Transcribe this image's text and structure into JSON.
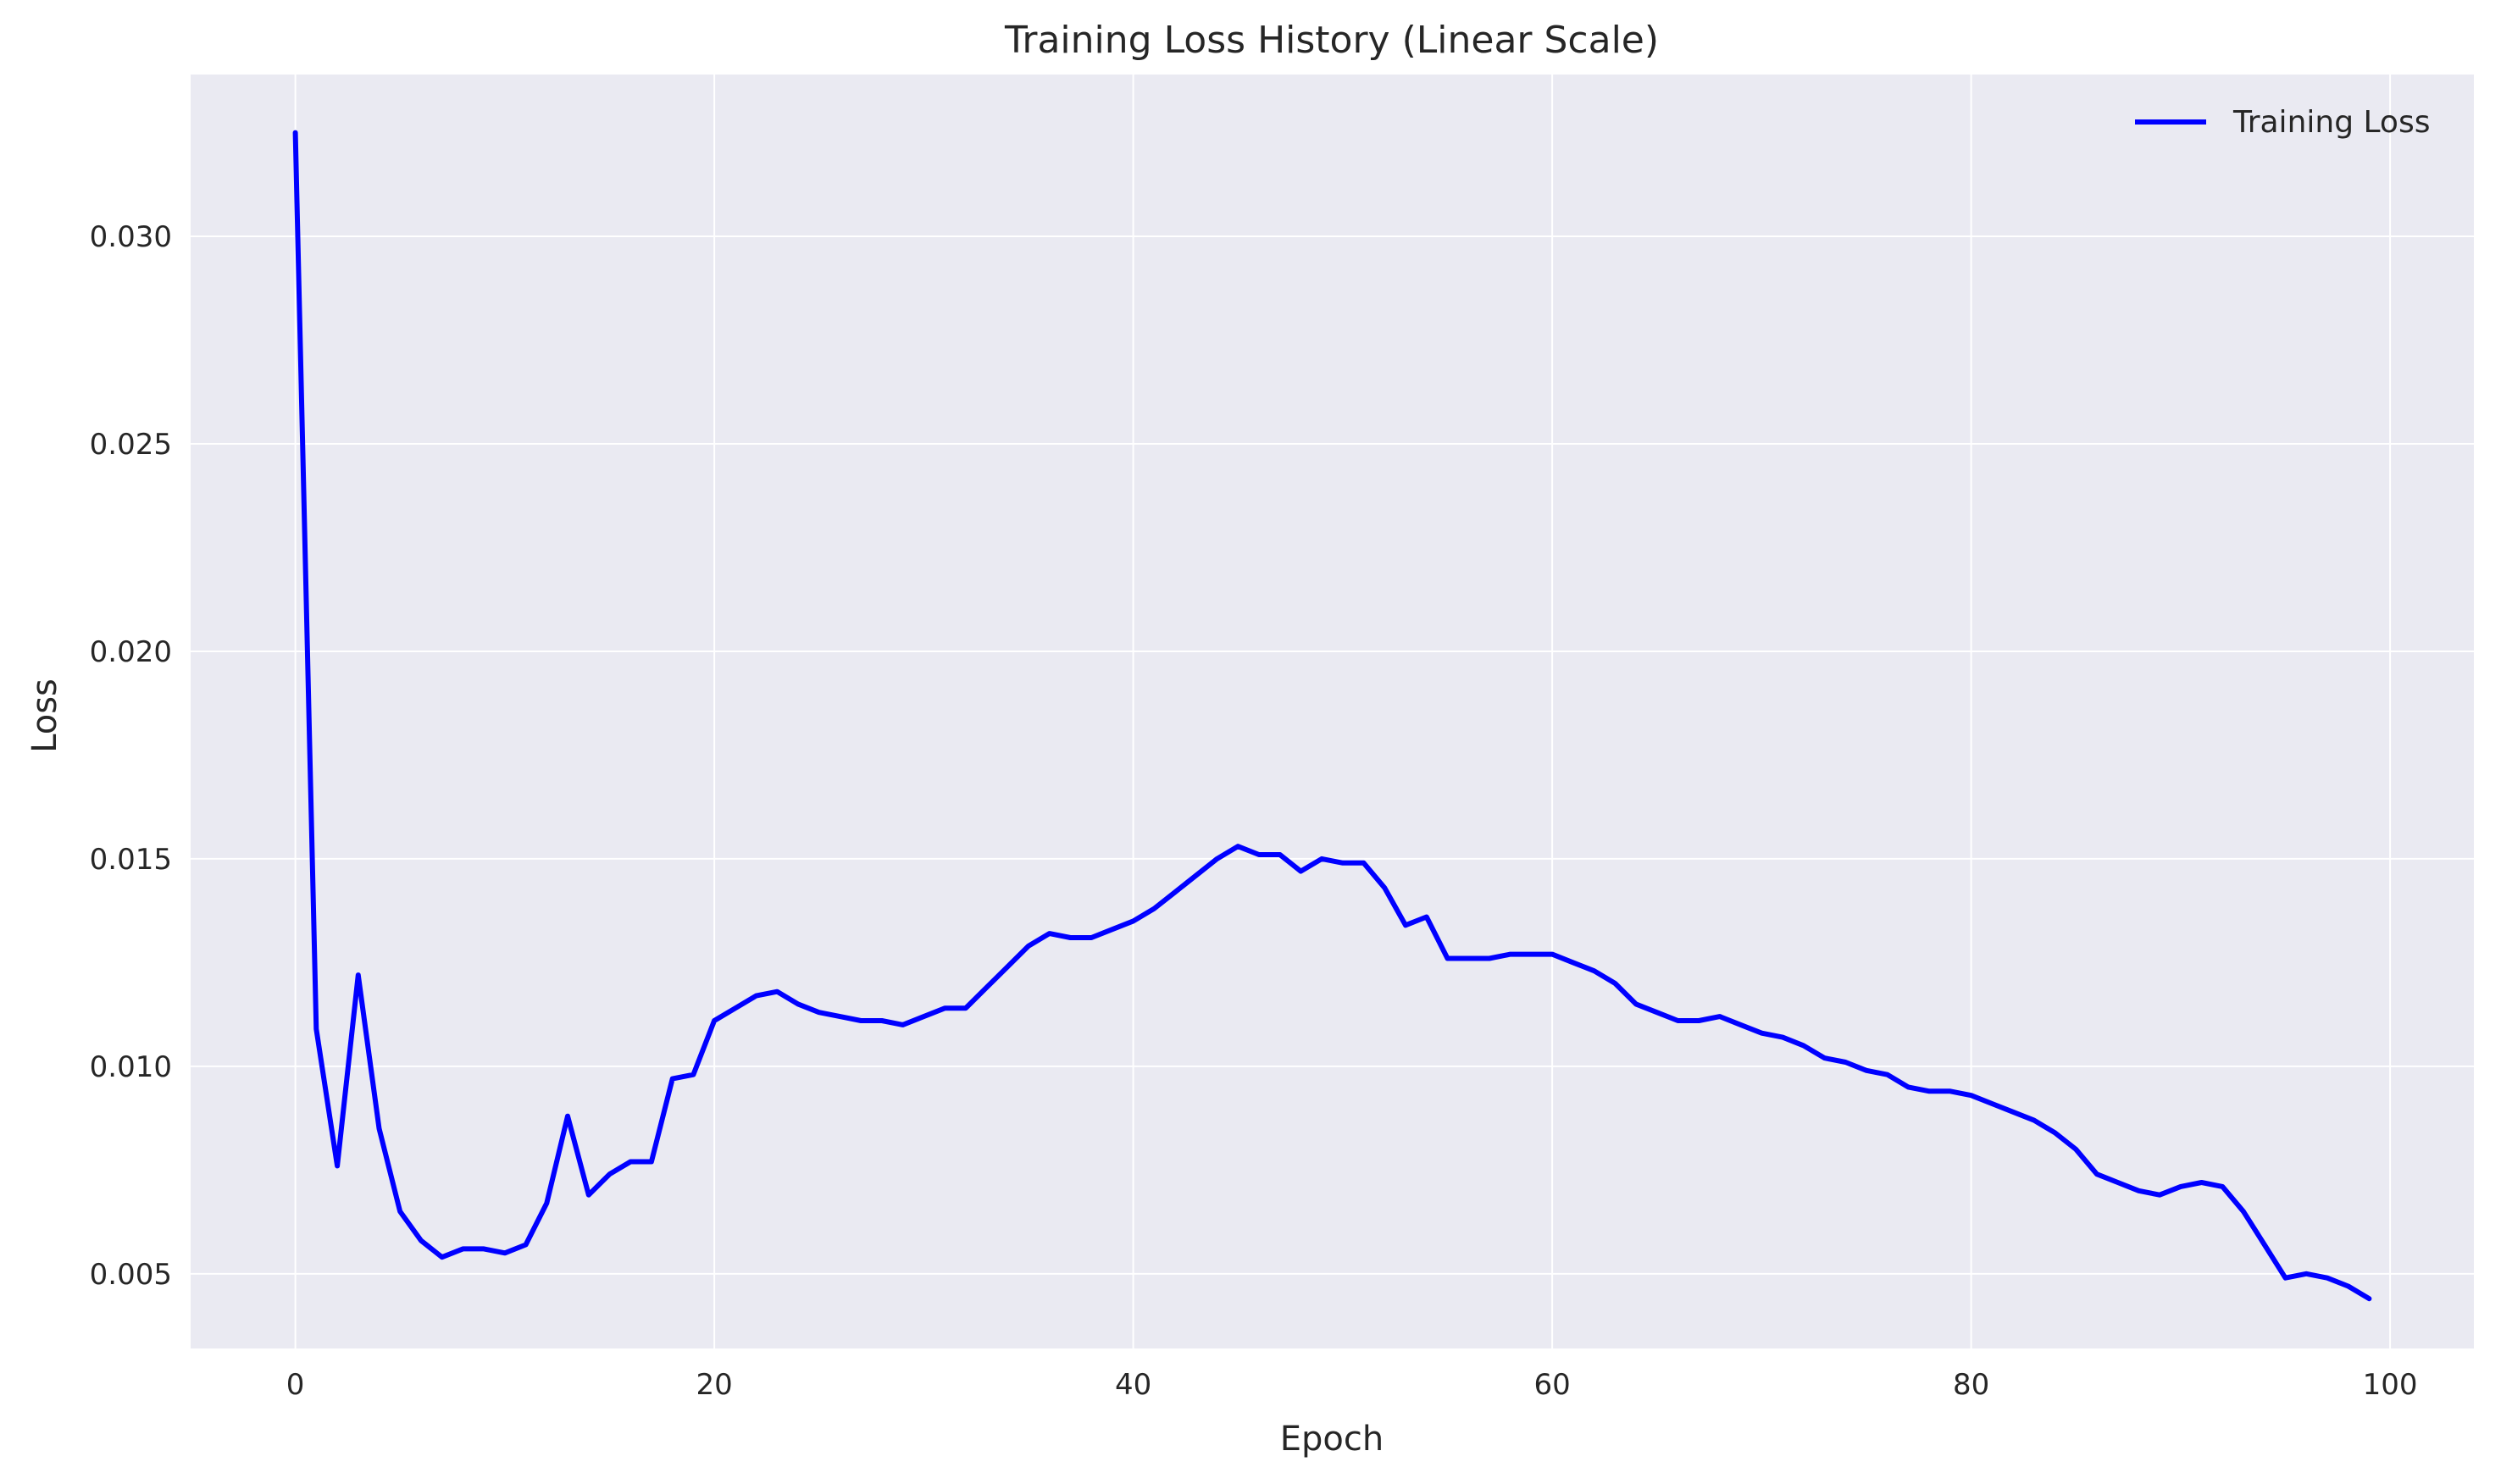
{
  "chart_data": {
    "type": "line",
    "title": "Training Loss History (Linear Scale)",
    "xlabel": "Epoch",
    "ylabel": "Loss",
    "xlim": [
      -5,
      104
    ],
    "ylim": [
      0.0032,
      0.0339
    ],
    "x_ticks": [
      0,
      20,
      40,
      60,
      80,
      100
    ],
    "x_tick_labels": [
      "0",
      "20",
      "40",
      "60",
      "80",
      "100"
    ],
    "y_ticks": [
      0.005,
      0.01,
      0.015,
      0.02,
      0.025,
      0.03
    ],
    "y_tick_labels": [
      "0.005",
      "0.010",
      "0.015",
      "0.020",
      "0.025",
      "0.030"
    ],
    "grid": true,
    "legend_position": "top-right",
    "colors": {
      "background": "#eaeaf2",
      "grid": "#ffffff",
      "line": "#0000ff"
    },
    "series": [
      {
        "name": "Training Loss",
        "color": "#0000ff",
        "x": [
          0,
          1,
          2,
          3,
          4,
          5,
          6,
          7,
          8,
          9,
          10,
          11,
          12,
          13,
          14,
          15,
          16,
          17,
          18,
          19,
          20,
          21,
          22,
          23,
          24,
          25,
          26,
          27,
          28,
          29,
          30,
          31,
          32,
          33,
          34,
          35,
          36,
          37,
          38,
          39,
          40,
          41,
          42,
          43,
          44,
          45,
          46,
          47,
          48,
          49,
          50,
          51,
          52,
          53,
          54,
          55,
          56,
          57,
          58,
          59,
          60,
          61,
          62,
          63,
          64,
          65,
          66,
          67,
          68,
          69,
          70,
          71,
          72,
          73,
          74,
          75,
          76,
          77,
          78,
          79,
          80,
          81,
          82,
          83,
          84,
          85,
          86,
          87,
          88,
          89,
          90,
          91,
          92,
          93,
          94,
          95,
          96,
          97,
          98,
          99
        ],
        "values": [
          0.0325,
          0.0109,
          0.0076,
          0.0122,
          0.0085,
          0.0065,
          0.0058,
          0.0054,
          0.0056,
          0.0056,
          0.0055,
          0.0057,
          0.0067,
          0.0088,
          0.0069,
          0.0074,
          0.0077,
          0.0077,
          0.0097,
          0.0098,
          0.0111,
          0.0114,
          0.0117,
          0.0118,
          0.0115,
          0.0113,
          0.0112,
          0.0111,
          0.0111,
          0.011,
          0.0112,
          0.0114,
          0.0114,
          0.0119,
          0.0124,
          0.0129,
          0.0132,
          0.0131,
          0.0131,
          0.0133,
          0.0135,
          0.0138,
          0.0142,
          0.0146,
          0.015,
          0.0153,
          0.0151,
          0.0151,
          0.0147,
          0.015,
          0.0149,
          0.0149,
          0.0143,
          0.0134,
          0.0136,
          0.0126,
          0.0126,
          0.0126,
          0.0127,
          0.0127,
          0.0127,
          0.0125,
          0.0123,
          0.012,
          0.0115,
          0.0113,
          0.0111,
          0.0111,
          0.0112,
          0.011,
          0.0108,
          0.0107,
          0.0105,
          0.0102,
          0.0101,
          0.0099,
          0.0098,
          0.0095,
          0.0094,
          0.0094,
          0.0093,
          0.0091,
          0.0089,
          0.0087,
          0.0084,
          0.008,
          0.0074,
          0.0072,
          0.007,
          0.0069,
          0.0071,
          0.0072,
          0.0071,
          0.0065,
          0.0057,
          0.0049,
          0.005,
          0.0049,
          0.0047,
          0.0044
        ]
      }
    ]
  }
}
